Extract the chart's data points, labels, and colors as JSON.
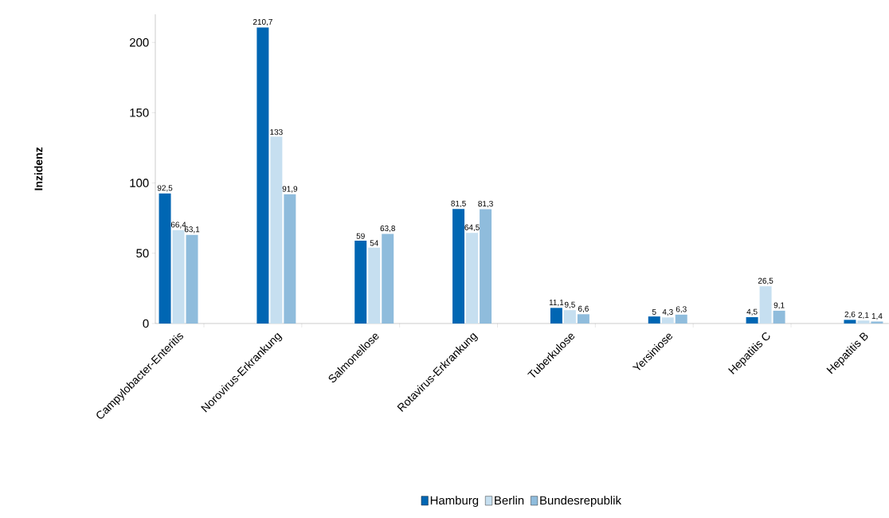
{
  "chart_data": {
    "type": "bar",
    "ylabel": "Inzidenz",
    "categories": [
      "Campylobacter-Enteritis",
      "Norovirus-Erkrankung",
      "Salmonellose",
      "Rotavirus-Erkrankung",
      "Tuberkulose",
      "Yersiniose",
      "Hepatitis C",
      "Hepatitis B"
    ],
    "series": [
      {
        "name": "Hamburg",
        "color": "#0066b3",
        "values": [
          92.5,
          210.7,
          59,
          81.5,
          11.1,
          5,
          4.5,
          2.6
        ],
        "value_labels": [
          "92,5",
          "210,7",
          "59",
          "81,5",
          "11,1",
          "5",
          "4,5",
          "2,6"
        ]
      },
      {
        "name": "Berlin",
        "color": "#c6dff0",
        "values": [
          66.4,
          133,
          54,
          64.5,
          9.5,
          4.3,
          26.5,
          2.1
        ],
        "value_labels": [
          "66,4",
          "133",
          "54",
          "64,5",
          "9,5",
          "4,3",
          "26,5",
          "2,1"
        ]
      },
      {
        "name": "Bundesrepublik",
        "color": "#8fbcdc",
        "values": [
          63.1,
          91.9,
          63.8,
          81.3,
          6.6,
          6.3,
          9.1,
          1.4
        ],
        "value_labels": [
          "63,1",
          "91,9",
          "63,8",
          "81,3",
          "6,6",
          "6,3",
          "9,1",
          "1,4"
        ]
      }
    ],
    "ylim": [
      0,
      220
    ],
    "yticks": [
      0,
      50,
      100,
      150,
      200
    ],
    "grid": false,
    "legend": "bottom"
  }
}
